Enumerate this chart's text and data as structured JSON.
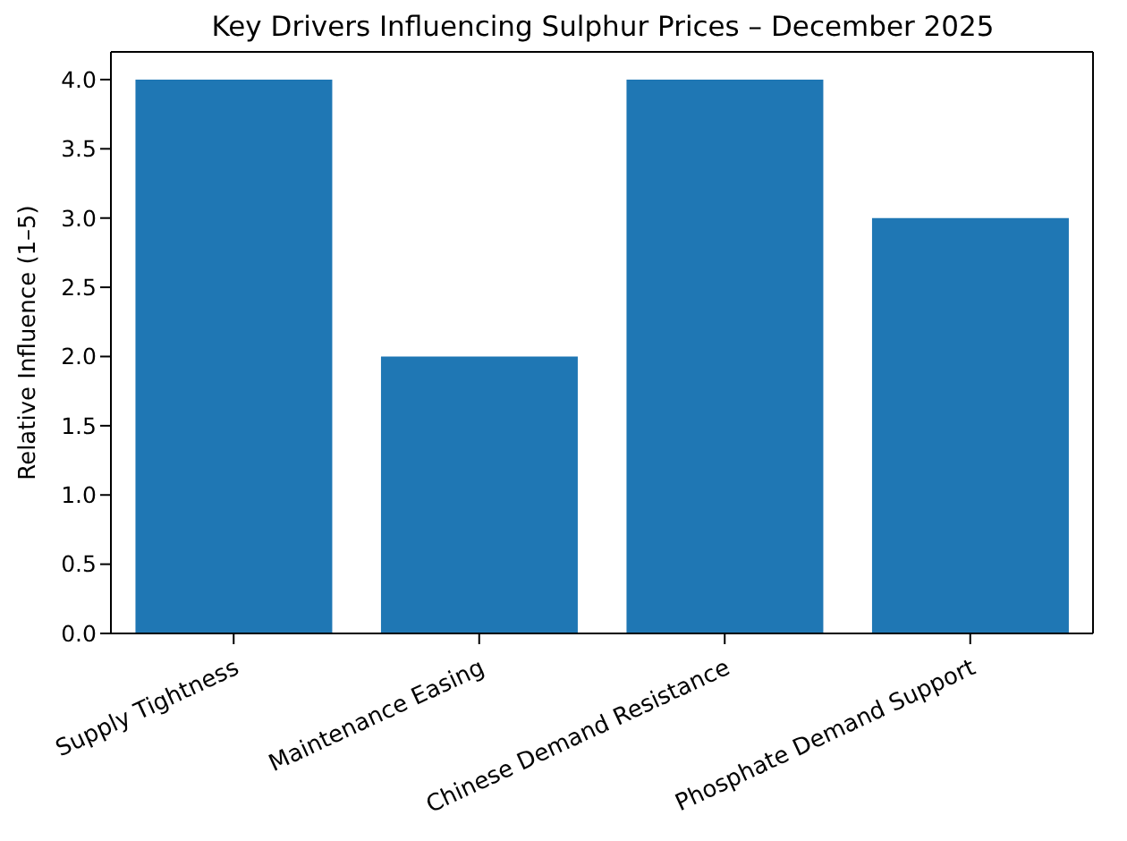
{
  "chart_data": {
    "type": "bar",
    "title": "Key Drivers Influencing Sulphur Prices – December 2025",
    "ylabel": "Relative Influence (1–5)",
    "categories": [
      "Supply Tightness",
      "Maintenance Easing",
      "Chinese Demand Resistance",
      "Phosphate Demand Support"
    ],
    "values": [
      4,
      2,
      4,
      3
    ],
    "color": "#1f77b4",
    "ylim": [
      0,
      4.2
    ],
    "yticks": [
      {
        "value": 0,
        "label": "0.0"
      },
      {
        "value": 0.5,
        "label": "0.5"
      },
      {
        "value": 1,
        "label": "1.0"
      },
      {
        "value": 1.5,
        "label": "1.5"
      },
      {
        "value": 2,
        "label": "2.0"
      },
      {
        "value": 2.5,
        "label": "2.5"
      },
      {
        "value": 3,
        "label": "3.0"
      },
      {
        "value": 3.5,
        "label": "3.5"
      },
      {
        "value": 4,
        "label": "4.0"
      }
    ],
    "grid": false
  }
}
